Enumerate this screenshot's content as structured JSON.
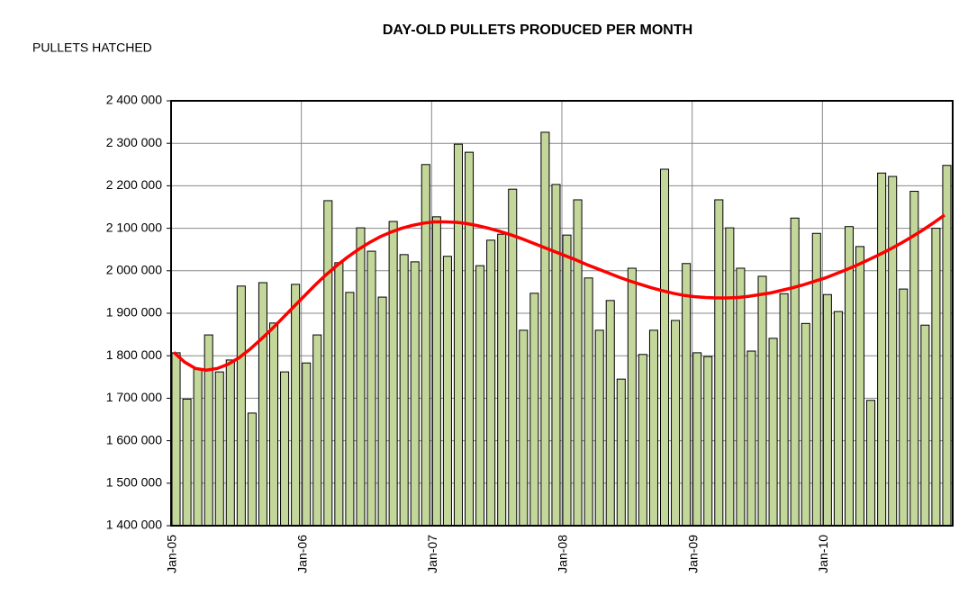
{
  "chart_data": {
    "type": "bar",
    "title": "DAY-OLD PULLETS PRODUCED PER MONTH",
    "y_label": "PULLETS HATCHED",
    "categories": [
      "Jan-05",
      null,
      null,
      null,
      null,
      null,
      null,
      null,
      null,
      null,
      null,
      null,
      "Jan-06",
      null,
      null,
      null,
      null,
      null,
      null,
      null,
      null,
      null,
      null,
      null,
      "Jan-07",
      null,
      null,
      null,
      null,
      null,
      null,
      null,
      null,
      null,
      null,
      null,
      "Jan-08",
      null,
      null,
      null,
      null,
      null,
      null,
      null,
      null,
      null,
      null,
      null,
      "Jan-09",
      null,
      null,
      null,
      null,
      null,
      null,
      null,
      null,
      null,
      null,
      null,
      "Jan-10",
      null,
      null,
      null,
      null,
      null,
      null,
      null,
      null,
      null,
      null,
      null
    ],
    "series": [
      {
        "type": "bar",
        "color": "#c4d79b",
        "values": [
          1807000,
          1698000,
          1769000,
          1849000,
          1762000,
          1790000,
          1964000,
          1665000,
          1972000,
          1877000,
          1762000,
          1968000,
          1783000,
          1849000,
          2165000,
          2019000,
          1949000,
          2101000,
          2046000,
          1938000,
          2116000,
          2038000,
          2021000,
          2250000,
          2127000,
          2034000,
          2298000,
          2279000,
          2012000,
          2072000,
          2086000,
          2192000,
          1860000,
          1947000,
          2326000,
          2203000,
          2084000,
          2167000,
          1983000,
          1860000,
          1930000,
          1745000,
          2006000,
          1803000,
          1860000,
          2239000,
          1883000,
          2017000,
          1807000,
          1798000,
          2167000,
          2101000,
          2006000,
          1811000,
          1987000,
          1841000,
          1946000,
          2124000,
          1876000,
          2088000,
          1944000,
          1904000,
          2104000,
          2057000,
          1695000,
          2230000,
          2222000,
          1957000,
          2187000,
          1872000,
          2100000,
          2248000
        ]
      },
      {
        "type": "line",
        "color": "#ff0000",
        "values": [
          1808000,
          1785000,
          1770000,
          1766000,
          1770000,
          1780000,
          1795000,
          1815000,
          1838000,
          1862000,
          1888000,
          1914000,
          1940000,
          1966000,
          1990000,
          2012000,
          2032000,
          2050000,
          2066000,
          2080000,
          2091000,
          2100000,
          2107000,
          2112000,
          2115000,
          2115000,
          2114000,
          2111000,
          2106000,
          2100000,
          2093000,
          2085000,
          2076000,
          2066000,
          2056000,
          2046000,
          2036000,
          2026000,
          2015000,
          2005000,
          1995000,
          1985000,
          1976000,
          1968000,
          1960000,
          1953000,
          1947000,
          1942000,
          1939000,
          1937000,
          1936000,
          1936000,
          1937000,
          1940000,
          1944000,
          1948000,
          1954000,
          1960000,
          1967000,
          1975000,
          1983000,
          1993000,
          2003000,
          2014000,
          2026000,
          2038000,
          2051000,
          2065000,
          2080000,
          2096000,
          2113000,
          2131000
        ]
      }
    ],
    "ylim": [
      1400000,
      2400000
    ],
    "yticks": [
      {
        "value": 1400000,
        "label": "1 400 000"
      },
      {
        "value": 1500000,
        "label": "1 500 000"
      },
      {
        "value": 1600000,
        "label": "1 600 000"
      },
      {
        "value": 1700000,
        "label": "1 700 000"
      },
      {
        "value": 1800000,
        "label": "1 800 000"
      },
      {
        "value": 1900000,
        "label": "1 900 000"
      },
      {
        "value": 2000000,
        "label": "2 000 000"
      },
      {
        "value": 2100000,
        "label": "2 100 000"
      },
      {
        "value": 2200000,
        "label": "2 200 000"
      },
      {
        "value": 2300000,
        "label": "2 300 000"
      },
      {
        "value": 2400000,
        "label": "2 400 000"
      }
    ],
    "grid": true
  }
}
